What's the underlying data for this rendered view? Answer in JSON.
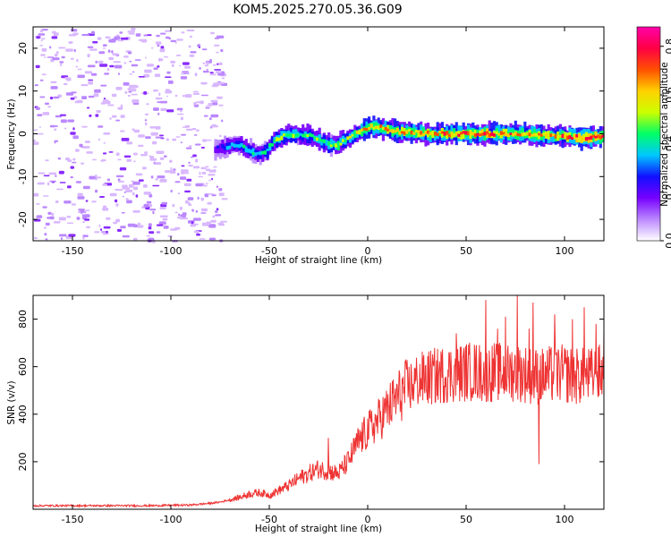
{
  "title": "KOM5.2025.270.05.36.G09",
  "chart_data": [
    {
      "type": "heatmap",
      "xlabel": "Height of straight line (km)",
      "ylabel": "Frequency (Hz)",
      "xlim": [
        -170,
        120
      ],
      "ylim": [
        -25,
        25
      ],
      "xticks": [
        -150,
        -100,
        -50,
        0,
        50,
        100
      ],
      "yticks": [
        -20,
        -10,
        0,
        10,
        20
      ],
      "colorbar": {
        "label": "Normalized spectral amplitude",
        "range": [
          0,
          0.88
        ],
        "ticks": [
          0.0,
          0.2,
          0.4,
          0.6,
          0.8
        ],
        "stops": [
          "#ffffff",
          "#bb88ff",
          "#7700ff",
          "#1010ff",
          "#00c8ff",
          "#00ff66",
          "#ccff00",
          "#ffd000",
          "#ff5000",
          "#ff0044",
          "#ff00aa"
        ]
      },
      "noise_region_x": [
        -170,
        -78
      ],
      "ridge": {
        "x": [
          -78,
          -72,
          -66,
          -60,
          -56,
          -52,
          -48,
          -44,
          -40,
          -35,
          -30,
          -25,
          -20,
          -16,
          -12,
          -8,
          -4,
          0,
          5,
          10,
          15,
          20,
          30,
          40,
          50,
          60,
          70,
          80,
          90,
          100,
          110,
          120
        ],
        "frequency": [
          -3.5,
          -3,
          -2.5,
          -4,
          -5,
          -4,
          -1.5,
          -0.5,
          0,
          -0.5,
          -0.5,
          -1.5,
          -2.5,
          -2.5,
          -1.5,
          -0.5,
          0.5,
          1.5,
          1.5,
          1,
          0.5,
          0.5,
          0,
          0,
          0,
          0,
          0,
          0,
          -0.5,
          -0.5,
          -1,
          -0.5
        ],
        "amplitude": [
          0.25,
          0.35,
          0.4,
          0.45,
          0.45,
          0.45,
          0.5,
          0.55,
          0.55,
          0.5,
          0.5,
          0.5,
          0.5,
          0.55,
          0.55,
          0.6,
          0.65,
          0.7,
          0.75,
          0.75,
          0.75,
          0.7,
          0.7,
          0.75,
          0.8,
          0.8,
          0.75,
          0.7,
          0.7,
          0.75,
          0.85,
          0.8
        ]
      }
    },
    {
      "type": "line",
      "xlabel": "Height of straight line (km)",
      "ylabel": "SNR (v/v)",
      "xlim": [
        -170,
        120
      ],
      "ylim": [
        0,
        900
      ],
      "xticks": [
        -150,
        -100,
        -50,
        0,
        50,
        100
      ],
      "yticks": [
        200,
        400,
        600,
        800
      ],
      "color": "#ee3333",
      "series": [
        {
          "name": "SNR",
          "x": [
            -170,
            -150,
            -130,
            -110,
            -90,
            -80,
            -75,
            -70,
            -65,
            -60,
            -55,
            -50,
            -45,
            -40,
            -35,
            -30,
            -25,
            -20,
            -15,
            -10,
            -5,
            0,
            5,
            10,
            15,
            20,
            25,
            30,
            35,
            40,
            45,
            50,
            55,
            60,
            65,
            70,
            75,
            80,
            85,
            90,
            95,
            100,
            105,
            110,
            115,
            120
          ],
          "y": [
            15,
            15,
            15,
            15,
            18,
            25,
            30,
            40,
            50,
            65,
            70,
            60,
            80,
            100,
            130,
            150,
            170,
            160,
            150,
            200,
            280,
            330,
            370,
            420,
            470,
            510,
            540,
            550,
            560,
            570,
            570,
            580,
            580,
            570,
            580,
            570,
            580,
            570,
            560,
            560,
            570,
            570,
            560,
            560,
            560,
            580
          ],
          "peaks": [
            [
              -20,
              300
            ],
            [
              45,
              740
            ],
            [
              60,
              880
            ],
            [
              66,
              760
            ],
            [
              70,
              810
            ],
            [
              76,
              900
            ],
            [
              82,
              760
            ],
            [
              84,
              870
            ],
            [
              87,
              190
            ],
            [
              95,
              820
            ],
            [
              104,
              800
            ],
            [
              110,
              850
            ],
            [
              116,
              780
            ],
            [
              120,
              750
            ]
          ]
        }
      ]
    }
  ]
}
